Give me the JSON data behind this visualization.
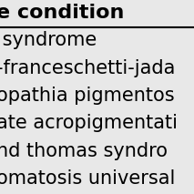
{
  "header": "e condition",
  "rows": [
    " syndrome",
    "-franceschetti-jada",
    "opathia pigmentos",
    "ate acropigmentati",
    "nd thomas syndro",
    "omatosis universal"
  ],
  "header_fontsize": 16,
  "row_fontsize": 15,
  "bg_color": "#e8e8e8",
  "header_color": "#000000",
  "row_color": "#000000",
  "separator_color": "#000000",
  "fig_width": 2.13,
  "fig_height": 2.13,
  "dpi": 100
}
